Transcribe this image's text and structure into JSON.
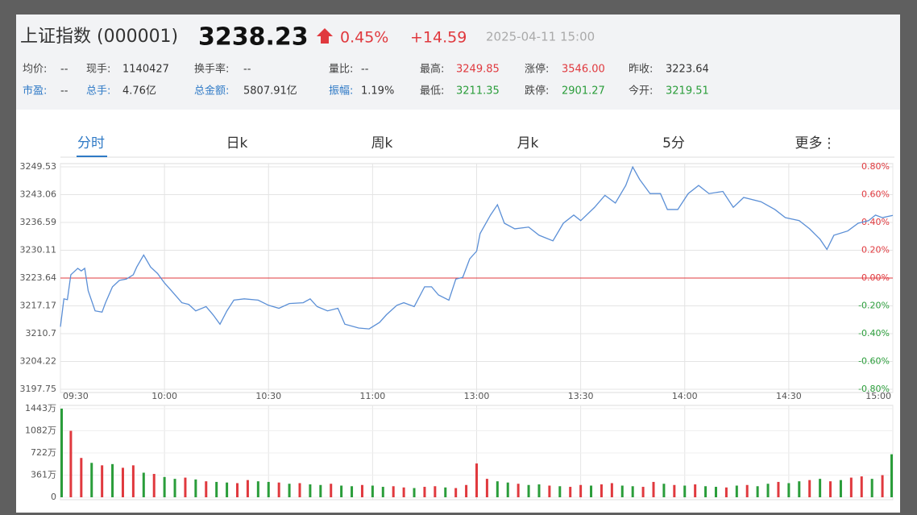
{
  "header": {
    "title": "上证指数 (000001)",
    "price": "3238.23",
    "change_pct": "0.45%",
    "change": "+14.59",
    "datetime": "2025-04-11 15:00"
  },
  "stats": [
    [
      {
        "label": "均价:",
        "value": "--",
        "label_color": "#444",
        "value_color": "#333"
      },
      {
        "label": "现手:",
        "value": "1140427",
        "label_color": "#444",
        "value_color": "#333"
      },
      {
        "label": "换手率:",
        "value": "--",
        "label_color": "#444",
        "value_color": "#333"
      },
      {
        "label": "量比:",
        "value": "--",
        "label_color": "#444",
        "value_color": "#333"
      },
      {
        "label": "最高:",
        "value": "3249.85",
        "label_color": "#444",
        "value_color": "#e0393e"
      },
      {
        "label": "涨停:",
        "value": "3546.00",
        "label_color": "#444",
        "value_color": "#e0393e"
      },
      {
        "label": "昨收:",
        "value": "3223.64",
        "label_color": "#444",
        "value_color": "#333"
      }
    ],
    [
      {
        "label": "市盈:",
        "value": "--",
        "label_color": "#2f7ac6",
        "value_color": "#333"
      },
      {
        "label": "总手:",
        "value": "4.76亿",
        "label_color": "#2f7ac6",
        "value_color": "#333"
      },
      {
        "label": "总金额:",
        "value": "5807.91亿",
        "label_color": "#2f7ac6",
        "value_color": "#333"
      },
      {
        "label": "振幅:",
        "value": "1.19%",
        "label_color": "#2f7ac6",
        "value_color": "#333"
      },
      {
        "label": "最低:",
        "value": "3211.35",
        "label_color": "#444",
        "value_color": "#2a9d3a"
      },
      {
        "label": "跌停:",
        "value": "2901.27",
        "label_color": "#444",
        "value_color": "#2a9d3a"
      },
      {
        "label": "今开:",
        "value": "3219.51",
        "label_color": "#444",
        "value_color": "#2a9d3a"
      }
    ]
  ],
  "tabs": [
    "分时",
    "日k",
    "周k",
    "月k",
    "5分",
    "更多⋮"
  ],
  "chart_data": [
    {
      "type": "line",
      "color": "#5b8fd6",
      "up_color": "#e0393e",
      "down_color": "#2a9d3a",
      "reference_line": 3223.64,
      "xlim": [
        0,
        240
      ],
      "xticks": [
        {
          "value": 0,
          "label": "09:30"
        },
        {
          "value": 30,
          "label": "10:00"
        },
        {
          "value": 60,
          "label": "10:30"
        },
        {
          "value": 90,
          "label": "11:00"
        },
        {
          "value": 120,
          "label": "13:00"
        },
        {
          "value": 150,
          "label": "13:30"
        },
        {
          "value": 180,
          "label": "14:00"
        },
        {
          "value": 210,
          "label": "14:30"
        },
        {
          "value": 240,
          "label": "15:00"
        }
      ],
      "ylim": [
        3197.75,
        3249.53
      ],
      "yticks": [
        3249.53,
        3243.06,
        3236.59,
        3230.11,
        3223.64,
        3217.17,
        3210.7,
        3204.22,
        3197.75
      ],
      "y2lim": [
        -0.8,
        0.8
      ],
      "y2ticks": [
        {
          "value": 0.8,
          "label": "0.80%"
        },
        {
          "value": 0.6,
          "label": "0.60%"
        },
        {
          "value": 0.4,
          "label": "0.40%"
        },
        {
          "value": 0.2,
          "label": "0.20%"
        },
        {
          "value": 0,
          "label": "0.00%"
        },
        {
          "value": -0.2,
          "label": "-0.20%"
        },
        {
          "value": -0.4,
          "label": "-0.40%"
        },
        {
          "value": -0.6,
          "label": "-0.60%"
        },
        {
          "value": -0.8,
          "label": "-0.80%"
        }
      ],
      "x": [
        0,
        1,
        2,
        3,
        5,
        6,
        7,
        8,
        10,
        12,
        13,
        15,
        17,
        19,
        21,
        22,
        24,
        26,
        28,
        30,
        32,
        35,
        37,
        39,
        42,
        44,
        46,
        48,
        50,
        53,
        57,
        60,
        63,
        66,
        70,
        72,
        74,
        77,
        80,
        82,
        86,
        89,
        92,
        94,
        97,
        99,
        102,
        105,
        107,
        109,
        112,
        114,
        116,
        118,
        120,
        121,
        124,
        126,
        128,
        131,
        135,
        138,
        142,
        145,
        148,
        150,
        154,
        157,
        160,
        163,
        165,
        167,
        170,
        173,
        175,
        178,
        181,
        184,
        187,
        191,
        194,
        197,
        202,
        206,
        209,
        213,
        216,
        219,
        221,
        223,
        227,
        230,
        233,
        235,
        237,
        240
      ],
      "values": [
        3212.3,
        3218.8,
        3218.6,
        3224.4,
        3225.9,
        3225.3,
        3225.9,
        3220.7,
        3216.0,
        3215.7,
        3217.9,
        3221.6,
        3223.1,
        3223.4,
        3224.4,
        3226.2,
        3229.0,
        3226.2,
        3224.7,
        3222.5,
        3220.7,
        3217.9,
        3217.5,
        3216.0,
        3217.0,
        3215.1,
        3212.9,
        3216.0,
        3218.5,
        3218.8,
        3218.5,
        3217.3,
        3216.6,
        3217.7,
        3217.9,
        3218.8,
        3217.0,
        3216.0,
        3216.6,
        3212.9,
        3212.0,
        3211.8,
        3213.3,
        3215.1,
        3217.3,
        3217.9,
        3217.0,
        3221.6,
        3221.6,
        3219.7,
        3218.5,
        3223.4,
        3223.8,
        3228.1,
        3229.9,
        3234.0,
        3238.3,
        3240.7,
        3236.4,
        3235.1,
        3235.5,
        3233.6,
        3232.3,
        3236.4,
        3238.3,
        3237.0,
        3240.1,
        3242.9,
        3241.1,
        3245.2,
        3249.5,
        3246.6,
        3243.3,
        3243.3,
        3239.6,
        3239.6,
        3243.3,
        3245.2,
        3243.3,
        3243.8,
        3240.1,
        3242.4,
        3241.4,
        3239.6,
        3237.7,
        3237.0,
        3235.1,
        3232.7,
        3230.3,
        3233.6,
        3234.6,
        3236.4,
        3237.0,
        3238.3,
        3237.7,
        3238.23
      ]
    },
    {
      "type": "bar",
      "xlim": [
        0,
        240
      ],
      "ylim": [
        0,
        1443
      ],
      "yticks": [
        {
          "value": 1443,
          "label": "1443万"
        },
        {
          "value": 1082,
          "label": "1082万"
        },
        {
          "value": 722,
          "label": "722万"
        },
        {
          "value": 361,
          "label": "361万"
        },
        0
      ],
      "x": [
        0,
        3,
        6,
        9,
        12,
        15,
        18,
        21,
        24,
        27,
        30,
        33,
        36,
        39,
        42,
        45,
        48,
        51,
        54,
        57,
        60,
        63,
        66,
        69,
        72,
        75,
        78,
        81,
        84,
        87,
        90,
        93,
        96,
        99,
        102,
        105,
        108,
        111,
        114,
        117,
        120,
        123,
        126,
        129,
        132,
        135,
        138,
        141,
        144,
        147,
        150,
        153,
        156,
        159,
        162,
        165,
        168,
        171,
        174,
        177,
        180,
        183,
        186,
        189,
        192,
        195,
        198,
        201,
        204,
        207,
        210,
        213,
        216,
        219,
        222,
        225,
        228,
        231,
        234,
        237,
        240
      ],
      "values": [
        1443,
        1082,
        640,
        560,
        520,
        540,
        480,
        520,
        400,
        380,
        330,
        300,
        320,
        290,
        260,
        250,
        240,
        230,
        280,
        260,
        250,
        240,
        220,
        230,
        210,
        200,
        220,
        190,
        180,
        200,
        190,
        170,
        180,
        160,
        150,
        170,
        180,
        160,
        150,
        200,
        550,
        300,
        260,
        240,
        220,
        200,
        210,
        190,
        180,
        170,
        200,
        190,
        210,
        230,
        190,
        180,
        170,
        250,
        220,
        200,
        190,
        210,
        180,
        170,
        160,
        190,
        200,
        180,
        220,
        250,
        230,
        260,
        280,
        300,
        260,
        280,
        320,
        340,
        300,
        360,
        700
      ],
      "colors": [
        "#2a9d3a",
        "#e0393e",
        "#e0393e",
        "#2a9d3a",
        "#e0393e",
        "#2a9d3a",
        "#e0393e",
        "#e0393e",
        "#2a9d3a",
        "#e0393e",
        "#2a9d3a",
        "#2a9d3a",
        "#e0393e",
        "#2a9d3a",
        "#e0393e",
        "#2a9d3a",
        "#2a9d3a",
        "#e0393e",
        "#e0393e",
        "#2a9d3a",
        "#2a9d3a",
        "#e0393e",
        "#2a9d3a",
        "#e0393e",
        "#2a9d3a",
        "#2a9d3a",
        "#e0393e",
        "#2a9d3a",
        "#2a9d3a",
        "#e0393e",
        "#2a9d3a",
        "#2a9d3a",
        "#e0393e",
        "#e0393e",
        "#2a9d3a",
        "#e0393e",
        "#e0393e",
        "#2a9d3a",
        "#e0393e",
        "#e0393e",
        "#e0393e",
        "#e0393e",
        "#2a9d3a",
        "#2a9d3a",
        "#e0393e",
        "#2a9d3a",
        "#2a9d3a",
        "#e0393e",
        "#2a9d3a",
        "#e0393e",
        "#e0393e",
        "#2a9d3a",
        "#e0393e",
        "#e0393e",
        "#2a9d3a",
        "#2a9d3a",
        "#e0393e",
        "#e0393e",
        "#2a9d3a",
        "#e0393e",
        "#2a9d3a",
        "#e0393e",
        "#2a9d3a",
        "#2a9d3a",
        "#e0393e",
        "#2a9d3a",
        "#e0393e",
        "#2a9d3a",
        "#2a9d3a",
        "#e0393e",
        "#2a9d3a",
        "#2a9d3a",
        "#e0393e",
        "#2a9d3a",
        "#e0393e",
        "#2a9d3a",
        "#e0393e",
        "#e0393e",
        "#2a9d3a",
        "#e0393e",
        "#2a9d3a"
      ]
    }
  ]
}
